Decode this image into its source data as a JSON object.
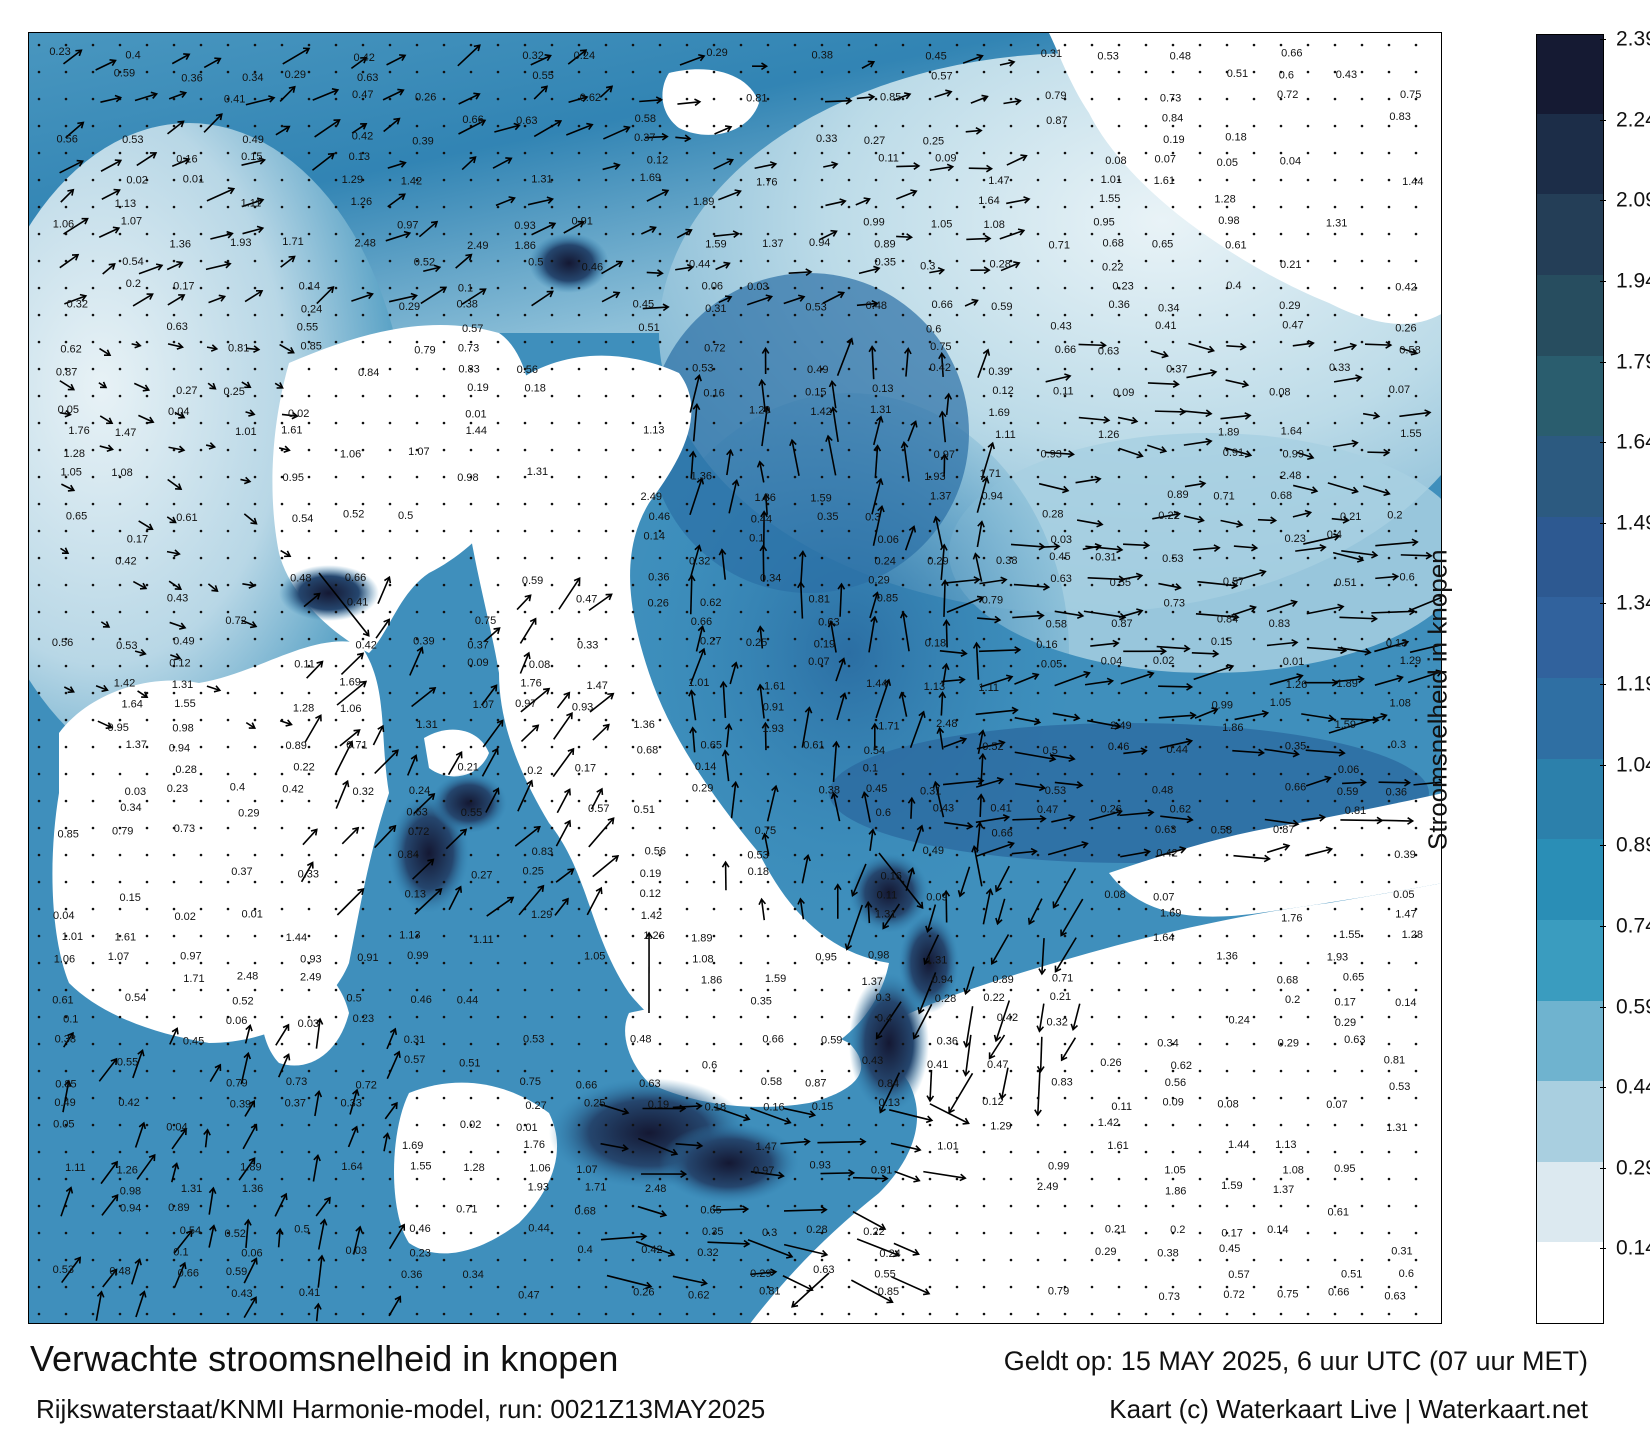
{
  "colorbar": {
    "title": "Stroomsnelheid in knopen",
    "ticks": [
      "0.14",
      "0.29",
      "0.44",
      "0.59",
      "0.74",
      "0.89",
      "1.04",
      "1.19",
      "1.34",
      "1.49",
      "1.64",
      "1.79",
      "1.94",
      "2.09",
      "2.24",
      "2.39"
    ],
    "steps": [
      "#ffffff",
      "#dce9f0",
      "#a9cfe0",
      "#6fb3cf",
      "#3a9cbf",
      "#2a8eb6",
      "#2c80ab",
      "#2f6fa3",
      "#31629d",
      "#2d5991",
      "#2c5a80",
      "#2a5d6e",
      "#274d5f",
      "#243e57",
      "#1c2d48",
      "#151a33"
    ]
  },
  "footer": {
    "title": "Verwachte stroomsnelheid in knopen",
    "valid": "Geldt op: 15 MAY 2025, 6 uur UTC (07 uur MET)",
    "model": "Rijkswaterstaat/KNMI Harmonie-model, run: 0021Z13MAY2025",
    "credit": "Kaart (c) Waterkaart Live | Waterkaart.net"
  },
  "map": {
    "sea_color": "#2f7fb0",
    "deep_color": "#1a2a48",
    "land_color": "#ffffff",
    "speed_labels": [
      "0.23",
      "0.4",
      "0.42",
      "0.32",
      "0.24",
      "0.29",
      "0.38",
      "0.45",
      "0.31",
      "0.53",
      "0.48",
      "0.66",
      "0.59",
      "0.36",
      "0.34",
      "0.29",
      "0.63",
      "0.55",
      "0.57",
      "0.51",
      "0.6",
      "0.43",
      "0.41",
      "0.47",
      "0.26",
      "0.62",
      "0.81",
      "0.85",
      "0.79",
      "0.73",
      "0.72",
      "0.75",
      "0.66",
      "0.63",
      "0.58",
      "0.87",
      "0.84",
      "0.83",
      "0.56",
      "0.53",
      "0.49",
      "0.42",
      "0.39",
      "0.37",
      "0.33",
      "0.27",
      "0.25",
      "0.19",
      "0.18",
      "0.16",
      "0.15",
      "0.13",
      "0.12",
      "0.11",
      "0.09",
      "0.08",
      "0.07",
      "0.05",
      "0.04",
      "0.02",
      "0.01",
      "1.29",
      "1.42",
      "1.31",
      "1.69",
      "1.76",
      "1.47",
      "1.01",
      "1.61",
      "1.44",
      "1.13",
      "1.11",
      "1.26",
      "1.89",
      "1.64",
      "1.55",
      "1.28",
      "1.06",
      "1.07",
      "0.97",
      "0.93",
      "0.91",
      "0.99",
      "1.05",
      "1.08",
      "0.95",
      "0.98",
      "1.31",
      "1.36",
      "1.93",
      "1.71",
      "2.48",
      "2.49",
      "1.86",
      "1.59",
      "1.37",
      "0.94",
      "0.89",
      "0.71",
      "0.68",
      "0.65",
      "0.61",
      "0.54",
      "0.52",
      "0.5",
      "0.46",
      "0.44",
      "0.35",
      "0.3",
      "0.28",
      "0.22",
      "0.21",
      "0.2",
      "0.17",
      "0.14",
      "0.1",
      "0.06",
      "0.03"
    ]
  }
}
